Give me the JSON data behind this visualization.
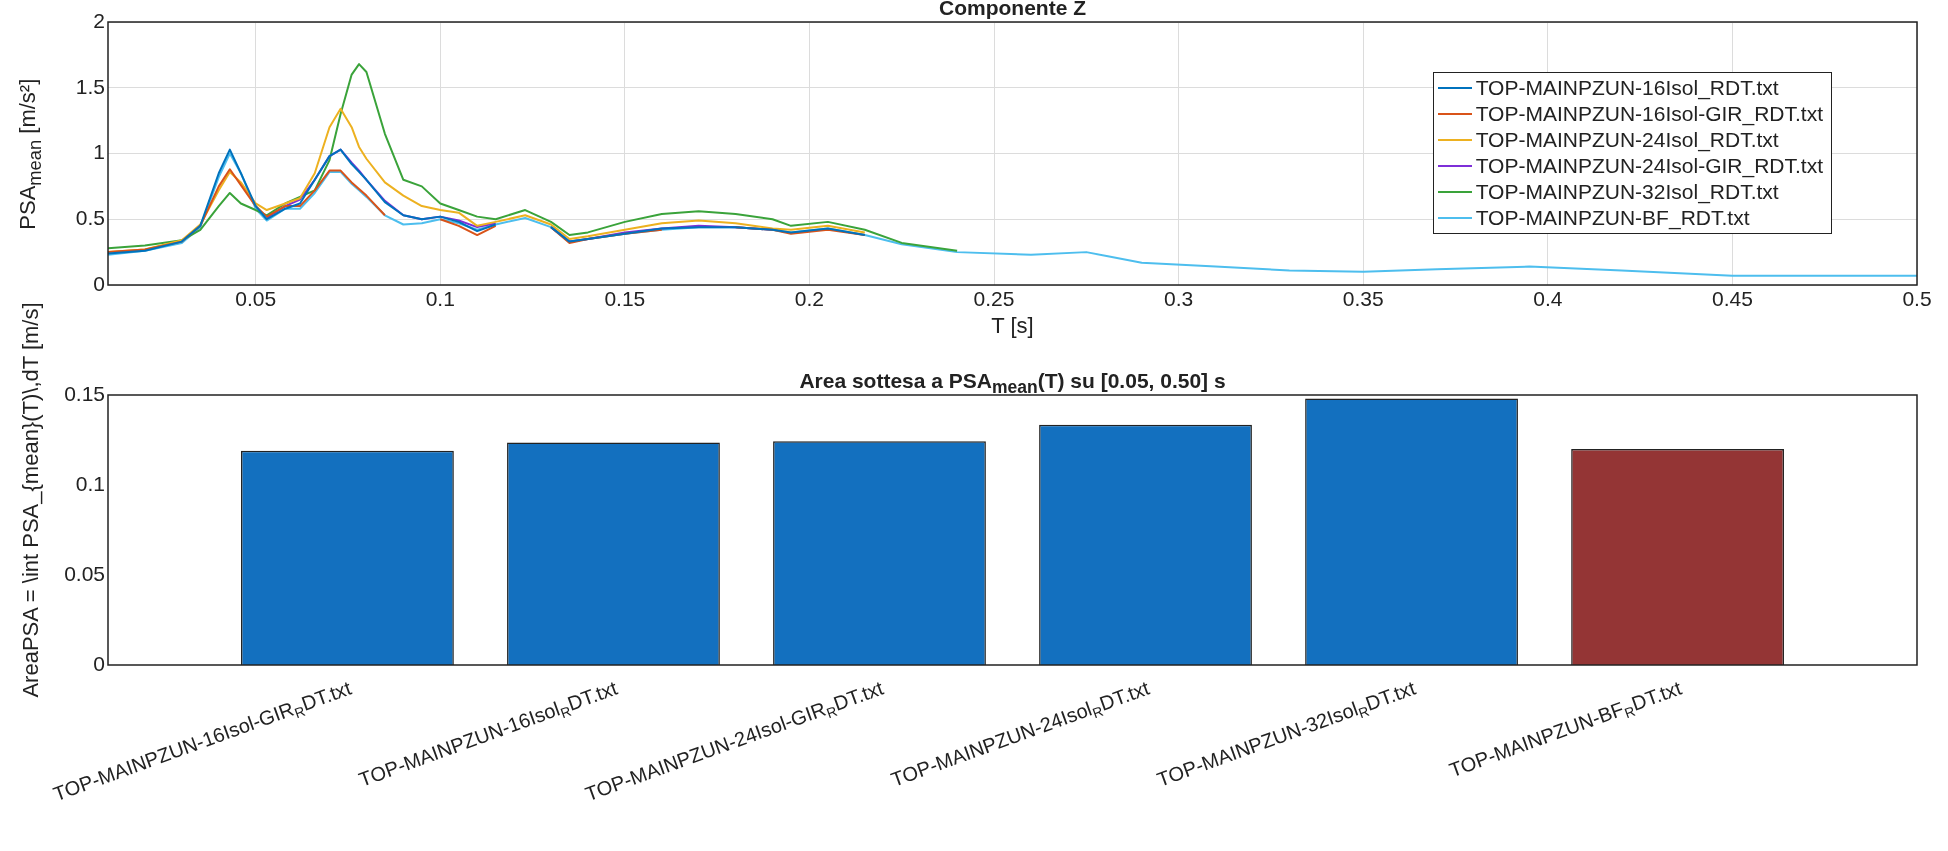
{
  "chart_data": [
    {
      "type": "line",
      "title": "Componente Z",
      "xlabel": "T [s]",
      "ylabel": "PSA$_{mean}$ [m/s²]",
      "x": [
        0.01,
        0.02,
        0.03,
        0.035,
        0.04,
        0.043,
        0.046,
        0.05,
        0.053,
        0.058,
        0.062,
        0.066,
        0.07,
        0.073,
        0.076,
        0.078,
        0.08,
        0.085,
        0.09,
        0.095,
        0.1,
        0.105,
        0.11,
        0.115,
        0.123,
        0.13,
        0.135,
        0.14,
        0.15,
        0.16,
        0.17,
        0.18,
        0.19,
        0.195,
        0.205,
        0.215,
        0.225,
        0.24,
        0.26,
        0.275,
        0.29,
        0.31,
        0.33,
        0.35,
        0.37,
        0.395,
        0.42,
        0.45,
        0.5
      ],
      "series": [
        {
          "name": "TOP-MAINPZUN-16Isol_RDT.txt",
          "color": "#0072bd",
          "values": [
            0.24,
            0.26,
            0.33,
            0.45,
            0.85,
            1.03,
            0.85,
            0.6,
            0.5,
            0.58,
            0.62,
            0.8,
            0.98,
            1.03,
            0.92,
            0.86,
            0.8,
            0.63,
            0.53,
            0.5,
            0.52,
            0.48,
            0.41,
            0.46,
            null,
            0.44,
            0.33,
            0.35,
            0.39,
            0.43,
            0.44,
            0.44,
            0.42,
            0.4,
            0.43,
            0.38,
            null,
            null,
            null,
            null,
            null,
            null,
            null,
            null,
            null,
            null,
            null,
            null,
            null
          ]
        },
        {
          "name": "TOP-MAINPZUN-16Isol-GIR_RDT.txt",
          "color": "#d95319",
          "values": [
            0.25,
            0.27,
            0.33,
            0.45,
            0.75,
            0.88,
            0.76,
            0.6,
            0.52,
            0.6,
            0.6,
            0.72,
            0.87,
            0.87,
            0.78,
            0.73,
            0.68,
            0.53,
            null,
            null,
            0.5,
            0.45,
            0.38,
            0.45,
            null,
            0.44,
            0.32,
            0.35,
            0.39,
            0.42,
            null,
            0.44,
            0.42,
            0.39,
            0.42,
            0.38,
            null,
            null,
            null,
            null,
            null,
            null,
            null,
            null,
            null,
            null,
            null,
            null,
            null
          ]
        },
        {
          "name": "TOP-MAINPZUN-24Isol_RDT.txt",
          "color": "#edb120",
          "values": [
            0.25,
            0.27,
            0.34,
            0.46,
            0.72,
            0.86,
            0.78,
            0.62,
            0.57,
            0.62,
            0.66,
            0.85,
            1.2,
            1.34,
            1.2,
            1.05,
            0.96,
            0.78,
            0.68,
            0.6,
            0.57,
            0.55,
            0.45,
            0.48,
            0.53,
            0.46,
            0.35,
            0.37,
            0.42,
            0.47,
            0.49,
            0.47,
            0.43,
            0.42,
            0.45,
            0.4,
            null,
            null,
            null,
            null,
            null,
            null,
            null,
            null,
            null,
            null,
            null,
            null,
            null
          ]
        },
        {
          "name": "TOP-MAINPZUN-24Isol-GIR_RDT.txt",
          "color": "#7e2fd8",
          "values": [
            null,
            null,
            null,
            null,
            null,
            null,
            null,
            null,
            0.51,
            0.6,
            0.65,
            0.8,
            0.98,
            1.03,
            0.93,
            0.87,
            0.8,
            0.64,
            0.53,
            0.5,
            0.52,
            0.49,
            0.44,
            0.47,
            null,
            0.44,
            0.33,
            0.35,
            0.4,
            0.43,
            0.45,
            0.44,
            0.42,
            null,
            null,
            null,
            null,
            null,
            null,
            null,
            null,
            null,
            null,
            null,
            null,
            null,
            null,
            null,
            null
          ]
        },
        {
          "name": "TOP-MAINPZUN-32Isol_RDT.txt",
          "color": "#3aa33a",
          "values": [
            0.28,
            0.3,
            0.34,
            0.42,
            0.6,
            0.7,
            0.62,
            0.57,
            0.53,
            0.62,
            0.67,
            0.72,
            0.95,
            1.3,
            1.6,
            1.68,
            1.62,
            1.15,
            0.8,
            0.75,
            0.62,
            0.57,
            0.52,
            0.5,
            0.57,
            0.48,
            0.38,
            0.4,
            0.48,
            0.54,
            0.56,
            0.54,
            0.5,
            0.45,
            0.48,
            0.42,
            0.32,
            0.26,
            null,
            null,
            null,
            null,
            null,
            null,
            null,
            null,
            null,
            null,
            null
          ]
        },
        {
          "name": "TOP-MAINPZUN-BF_RDT.txt",
          "color": "#4dbeee",
          "values": [
            0.23,
            0.26,
            0.32,
            0.44,
            0.82,
            1.0,
            0.85,
            0.58,
            0.49,
            0.58,
            0.58,
            0.7,
            0.86,
            0.86,
            0.77,
            0.72,
            0.67,
            0.53,
            0.46,
            0.47,
            0.5,
            0.47,
            0.42,
            0.46,
            0.51,
            0.44,
            0.33,
            0.35,
            0.39,
            0.42,
            0.44,
            0.44,
            0.42,
            0.4,
            0.43,
            0.38,
            0.31,
            0.25,
            0.23,
            0.25,
            0.17,
            0.14,
            0.11,
            0.1,
            0.12,
            0.14,
            0.11,
            0.07,
            0.07
          ]
        }
      ],
      "xlim": [
        0.01,
        0.5
      ],
      "xticks": [
        0.05,
        0.1,
        0.15,
        0.2,
        0.25,
        0.3,
        0.35,
        0.4,
        0.45,
        0.5
      ],
      "ylim": [
        0,
        2
      ],
      "yticks": [
        0,
        0.5,
        1,
        1.5,
        2
      ],
      "grid": true,
      "legend": "right"
    },
    {
      "type": "bar",
      "title": "Area sottesa a PSA$_{mean}$(T) su [0.05, 0.50] s",
      "ylabel": "AreaPSA = \\int PSA_{mean}(T)\\,dT  [m/s]",
      "categories": [
        "TOP-MAINPZUN-16Isol-GIR$_{R}$DT.txt",
        "TOP-MAINPZUN-16Isol$_{R}$DT.txt",
        "TOP-MAINPZUN-24Isol-GIR$_{R}$DT.txt",
        "TOP-MAINPZUN-24Isol$_{R}$DT.txt",
        "TOP-MAINPZUN-32Isol$_{R}$DT.txt",
        "TOP-MAINPZUN-BF$_{R}$DT.txt"
      ],
      "values": [
        0.119,
        0.1236,
        0.1243,
        0.1335,
        0.148,
        0.12
      ],
      "colors": [
        "#1370bf",
        "#1370bf",
        "#1370bf",
        "#1370bf",
        "#1370bf",
        "#943535"
      ],
      "ylim": [
        0,
        0.15
      ],
      "yticks": [
        0,
        0.05,
        0.1,
        0.15
      ]
    }
  ]
}
